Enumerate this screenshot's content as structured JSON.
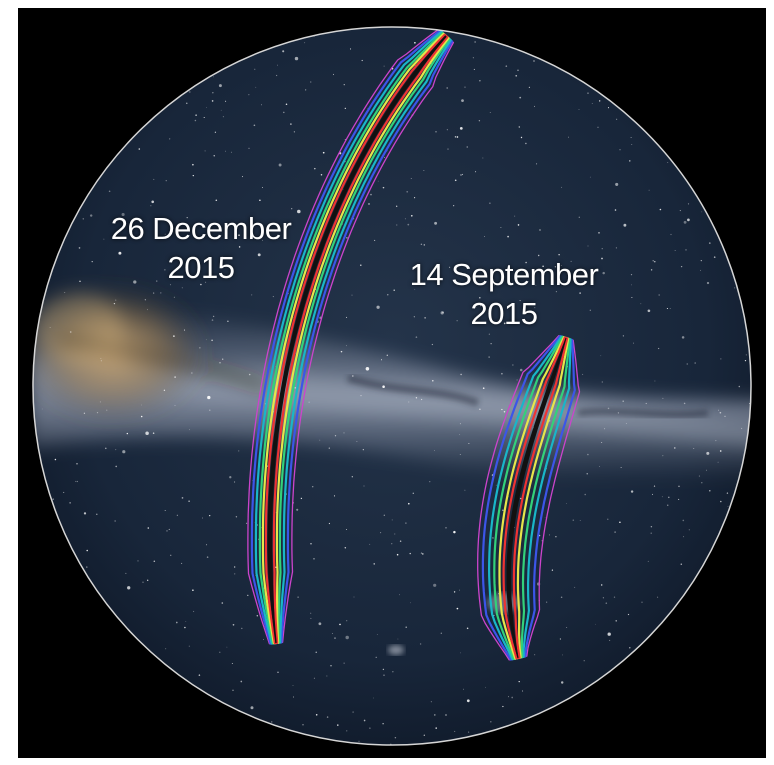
{
  "events": [
    {
      "id": "gw151226",
      "date": "26 December",
      "year": "2015"
    },
    {
      "id": "gw150914",
      "date": "14 September",
      "year": "2015"
    }
  ],
  "contour_colors": [
    "#cc44cc",
    "#3c55e8",
    "#19b6c8",
    "#33d17a",
    "#e6e64a",
    "#ee3333"
  ],
  "colors": {
    "background": "#000000",
    "sky": "#1c2a3c",
    "milky_way": "#8c95a8",
    "galactic_core": "#b08a55",
    "sphere_outline": "#d6d6d6",
    "label_text": "#ffffff"
  }
}
